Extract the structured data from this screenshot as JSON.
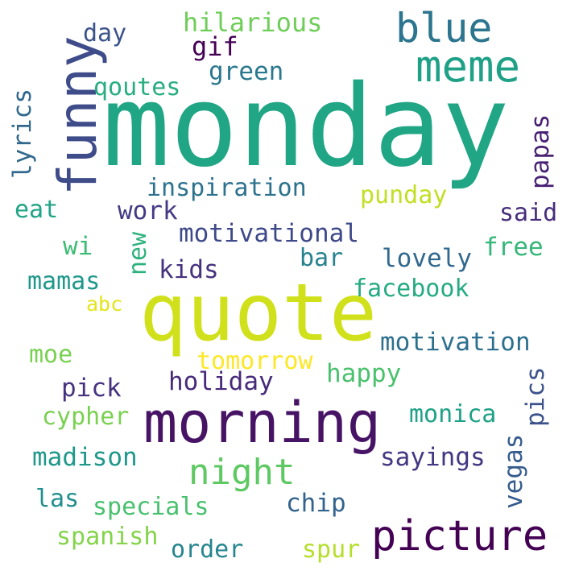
{
  "words": [
    {
      "text": "monday",
      "color": "#21a685"
    },
    {
      "text": "quote",
      "color": "#d0e11c"
    },
    {
      "text": "morning",
      "color": "#471365"
    },
    {
      "text": "funny",
      "color": "#3e4c8a"
    },
    {
      "text": "meme",
      "color": "#1fa187"
    },
    {
      "text": "blue",
      "color": "#2b758e"
    },
    {
      "text": "picture",
      "color": "#440154"
    },
    {
      "text": "night",
      "color": "#5ec962"
    },
    {
      "text": "hilarious",
      "color": "#6ece58"
    },
    {
      "text": "day",
      "color": "#3b528b"
    },
    {
      "text": "gif",
      "color": "#440154"
    },
    {
      "text": "green",
      "color": "#2a788e"
    },
    {
      "text": "qoutes",
      "color": "#27ad81"
    },
    {
      "text": "lyrics",
      "color": "#31688e"
    },
    {
      "text": "inspiration",
      "color": "#2c728e"
    },
    {
      "text": "papas",
      "color": "#482173"
    },
    {
      "text": "punday",
      "color": "#c2df23"
    },
    {
      "text": "eat",
      "color": "#20a486"
    },
    {
      "text": "work",
      "color": "#443a83"
    },
    {
      "text": "said",
      "color": "#472d7b"
    },
    {
      "text": "motivational",
      "color": "#3e4989"
    },
    {
      "text": "new",
      "color": "#2db27d"
    },
    {
      "text": "wi",
      "color": "#3dbc74"
    },
    {
      "text": "free",
      "color": "#35b779"
    },
    {
      "text": "bar",
      "color": "#26828e"
    },
    {
      "text": "lovely",
      "color": "#31688e"
    },
    {
      "text": "kids",
      "color": "#46327e"
    },
    {
      "text": "mamas",
      "color": "#1f988b"
    },
    {
      "text": "facebook",
      "color": "#25ab82"
    },
    {
      "text": "abc",
      "color": "#e4e419"
    },
    {
      "text": "motivation",
      "color": "#2d708e"
    },
    {
      "text": "moe",
      "color": "#7ad151"
    },
    {
      "text": "tomorrow",
      "color": "#fde725"
    },
    {
      "text": "happy",
      "color": "#4ac16d"
    },
    {
      "text": "holiday",
      "color": "#472a7a"
    },
    {
      "text": "pick",
      "color": "#46327e"
    },
    {
      "text": "pics",
      "color": "#3b528b"
    },
    {
      "text": "cypher",
      "color": "#7ad151"
    },
    {
      "text": "monica",
      "color": "#1fa187"
    },
    {
      "text": "madison",
      "color": "#1f988b"
    },
    {
      "text": "sayings",
      "color": "#453781"
    },
    {
      "text": "vegas",
      "color": "#365c8d"
    },
    {
      "text": "las",
      "color": "#218f8d"
    },
    {
      "text": "specials",
      "color": "#48c16e"
    },
    {
      "text": "chip",
      "color": "#33638d"
    },
    {
      "text": "spanish",
      "color": "#84d44b"
    },
    {
      "text": "order",
      "color": "#25858e"
    },
    {
      "text": "spur",
      "color": "#b5de2b"
    }
  ]
}
